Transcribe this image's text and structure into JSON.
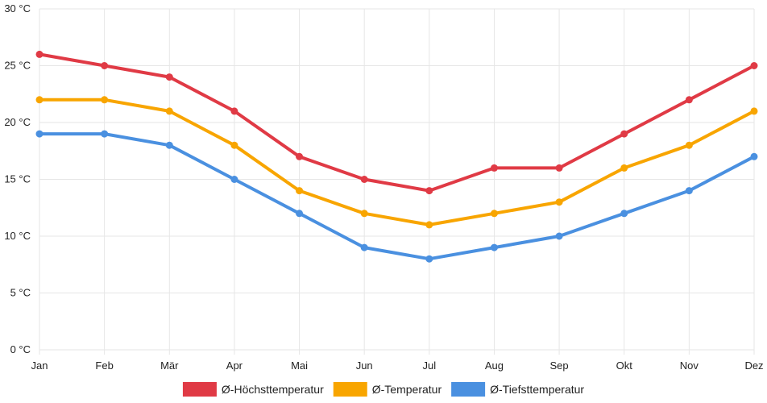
{
  "chart_data": {
    "type": "line",
    "title": "",
    "xlabel": "",
    "ylabel": "",
    "categories": [
      "Jan",
      "Feb",
      "Mär",
      "Apr",
      "Mai",
      "Jun",
      "Jul",
      "Aug",
      "Sep",
      "Okt",
      "Nov",
      "Dez"
    ],
    "ylim": [
      0,
      30
    ],
    "yticks": [
      0,
      5,
      10,
      15,
      20,
      25,
      30
    ],
    "y_unit": " °C",
    "grid": true,
    "legend_position": "bottom-center",
    "series": [
      {
        "name": "Ø-Höchsttemperatur",
        "color": "#e03a45",
        "values": [
          26,
          25,
          24,
          21,
          17,
          15,
          14,
          16,
          16,
          19,
          22,
          25
        ]
      },
      {
        "name": "Ø-Temperatur",
        "color": "#f8a500",
        "values": [
          22,
          22,
          21,
          18,
          14,
          12,
          11,
          12,
          13,
          16,
          18,
          21
        ]
      },
      {
        "name": "Ø-Tiefsttemperatur",
        "color": "#4a90e0",
        "values": [
          19,
          19,
          18,
          15,
          12,
          9,
          8,
          9,
          10,
          12,
          14,
          17
        ]
      }
    ]
  }
}
